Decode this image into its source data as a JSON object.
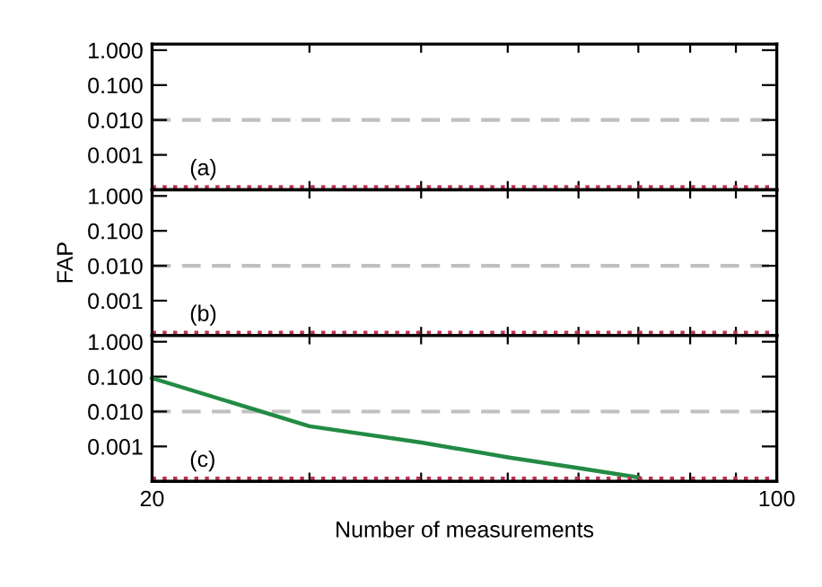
{
  "chart_data": [
    {
      "type": "line",
      "annotations": [
        "(a)"
      ],
      "x": [
        20,
        30,
        40,
        50,
        60,
        70,
        80,
        90,
        100
      ],
      "log": "xy",
      "xlim": [
        20,
        100
      ],
      "ylim": [
        0.0001,
        1.5
      ],
      "xticks": [
        {
          "value": 20,
          "label": null
        },
        {
          "value": 30,
          "label": null
        },
        {
          "value": 40,
          "label": null
        },
        {
          "value": 50,
          "label": null
        },
        {
          "value": 60,
          "label": null
        },
        {
          "value": 70,
          "label": null
        },
        {
          "value": 80,
          "label": null
        },
        {
          "value": 90,
          "label": null
        },
        {
          "value": 100,
          "label": null
        }
      ],
      "yticks": [
        {
          "value": 0.001,
          "label": "0.001"
        },
        {
          "value": 0.01,
          "label": "0.010"
        },
        {
          "value": 0.1,
          "label": "0.100"
        },
        {
          "value": 1,
          "label": "1.000"
        }
      ],
      "tick_labels": "y",
      "ref_lines": [
        {
          "axis": "y",
          "value": 0.01,
          "color": "#c0c0c0",
          "line_style": "dashed"
        }
      ],
      "series": [
        {
          "color": "#c03050",
          "line_style": "dotted",
          "values": [
            0.00012,
            0.00012,
            0.00012,
            0.00012,
            0.00012,
            0.00012,
            0.00012,
            0.00012,
            0.00012
          ]
        }
      ]
    },
    {
      "type": "line",
      "ylabel": "FAP",
      "annotations": [
        "(b)"
      ],
      "x": [
        20,
        30,
        40,
        50,
        60,
        70,
        80,
        90,
        100
      ],
      "log": "xy",
      "xlim": [
        20,
        100
      ],
      "ylim": [
        0.0001,
        1.5
      ],
      "xticks": [
        {
          "value": 20,
          "label": null
        },
        {
          "value": 30,
          "label": null
        },
        {
          "value": 40,
          "label": null
        },
        {
          "value": 50,
          "label": null
        },
        {
          "value": 60,
          "label": null
        },
        {
          "value": 70,
          "label": null
        },
        {
          "value": 80,
          "label": null
        },
        {
          "value": 90,
          "label": null
        },
        {
          "value": 100,
          "label": null
        }
      ],
      "yticks": [
        {
          "value": 0.001,
          "label": "0.001"
        },
        {
          "value": 0.01,
          "label": "0.010"
        },
        {
          "value": 0.1,
          "label": "0.100"
        },
        {
          "value": 1,
          "label": "1.000"
        }
      ],
      "tick_labels": "y",
      "ref_lines": [
        {
          "axis": "y",
          "value": 0.01,
          "color": "#c0c0c0",
          "line_style": "dashed"
        }
      ],
      "series": [
        {
          "color": "#c03050",
          "line_style": "dotted",
          "values": [
            0.00012,
            0.00012,
            0.00012,
            0.00012,
            0.00012,
            0.00012,
            0.00012,
            0.00012,
            0.00012
          ]
        }
      ]
    },
    {
      "type": "line",
      "xlabel": "Number of measurements",
      "annotations": [
        "(c)"
      ],
      "x": [
        20,
        30,
        40,
        50,
        60,
        70,
        80,
        90,
        100
      ],
      "log": "xy",
      "xlim": [
        20,
        100
      ],
      "ylim": [
        0.0001,
        1.5
      ],
      "xticks": [
        {
          "value": 20,
          "label": "20"
        },
        {
          "value": 30,
          "label": null
        },
        {
          "value": 40,
          "label": null
        },
        {
          "value": 50,
          "label": null
        },
        {
          "value": 60,
          "label": null
        },
        {
          "value": 70,
          "label": null
        },
        {
          "value": 80,
          "label": null
        },
        {
          "value": 90,
          "label": null
        },
        {
          "value": 100,
          "label": "100"
        }
      ],
      "yticks": [
        {
          "value": 0.001,
          "label": "0.001"
        },
        {
          "value": 0.01,
          "label": "0.010"
        },
        {
          "value": 0.1,
          "label": "0.100"
        },
        {
          "value": 1,
          "label": "1.000"
        }
      ],
      "ref_lines": [
        {
          "axis": "y",
          "value": 0.01,
          "color": "#c0c0c0",
          "line_style": "dashed"
        }
      ],
      "series": [
        {
          "color": "#228b44",
          "line_style": "solid",
          "values": [
            0.09,
            0.0038,
            0.0013,
            0.00049,
            0.00024,
            0.00013,
            null,
            null,
            null
          ]
        },
        {
          "color": "#c03050",
          "line_style": "dotted",
          "values": [
            0.00012,
            0.00012,
            0.00012,
            0.00012,
            0.00012,
            0.00012,
            0.00012,
            0.00012,
            0.00012
          ]
        }
      ]
    }
  ]
}
